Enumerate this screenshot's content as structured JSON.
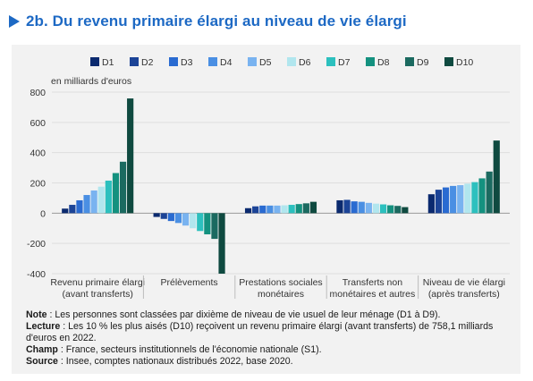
{
  "header": {
    "title": "2b. Du revenu primaire élargi au niveau de vie élargi",
    "accent_color": "#1d69c4"
  },
  "notes": [
    {
      "label": "Note",
      "text": " : Les personnes sont classées par dixième de niveau de vie usuel de leur ménage (D1 à D9)."
    },
    {
      "label": "Lecture",
      "text": " : Les 10 % les plus aisés (D10) reçoivent un revenu primaire élargi (avant transferts) de 758,1 milliards d'euros en 2022."
    },
    {
      "label": "Champ",
      "text": " : France, secteurs institutionnels de l'économie nationale (S1)."
    },
    {
      "label": "Source",
      "text": " : Insee, comptes nationaux distribués 2022, base 2020."
    }
  ],
  "chart_data": {
    "type": "bar",
    "ylabel": "en milliards d'euros",
    "ylim": [
      -400,
      800
    ],
    "yticks": [
      800,
      600,
      400,
      200,
      0,
      -200,
      -400
    ],
    "grid": true,
    "legend_position": "top",
    "categories": [
      [
        "Revenu primaire élargi",
        "(avant transferts)"
      ],
      [
        "Prélèvements"
      ],
      [
        "Prestations sociales",
        "monétaires"
      ],
      [
        "Transferts non",
        "monétaires et autres"
      ],
      [
        "Niveau de vie élargi",
        "(après transferts)"
      ]
    ],
    "series": [
      {
        "name": "D1",
        "color": "#0b2a6f",
        "values": [
          30,
          -25,
          33,
          85,
          125
        ]
      },
      {
        "name": "D2",
        "color": "#1c4497",
        "values": [
          55,
          -38,
          45,
          88,
          155
        ]
      },
      {
        "name": "D3",
        "color": "#2a6bd1",
        "values": [
          85,
          -52,
          50,
          78,
          170
        ]
      },
      {
        "name": "D4",
        "color": "#4a8fe3",
        "values": [
          120,
          -65,
          50,
          75,
          180
        ]
      },
      {
        "name": "D5",
        "color": "#79b3f0",
        "values": [
          150,
          -82,
          50,
          68,
          185
        ]
      },
      {
        "name": "D6",
        "color": "#b1e6ee",
        "values": [
          175,
          -100,
          52,
          63,
          195
        ]
      },
      {
        "name": "D7",
        "color": "#2cc0be",
        "values": [
          215,
          -118,
          55,
          58,
          205
        ]
      },
      {
        "name": "D8",
        "color": "#14917f",
        "values": [
          265,
          -140,
          60,
          52,
          230
        ]
      },
      {
        "name": "D9",
        "color": "#1b6a60",
        "values": [
          340,
          -170,
          65,
          48,
          275
        ]
      },
      {
        "name": "D10",
        "color": "#0f4a40",
        "values": [
          758.1,
          -400,
          75,
          40,
          480
        ]
      }
    ]
  }
}
